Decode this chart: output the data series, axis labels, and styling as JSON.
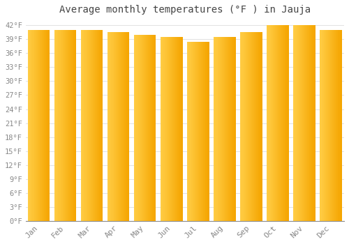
{
  "months": [
    "Jan",
    "Feb",
    "Mar",
    "Apr",
    "May",
    "Jun",
    "Jul",
    "Aug",
    "Sep",
    "Oct",
    "Nov",
    "Dec"
  ],
  "values": [
    41.0,
    41.0,
    41.0,
    40.5,
    40.0,
    39.5,
    38.5,
    39.5,
    40.5,
    42.0,
    42.0,
    41.0
  ],
  "bar_color_left": "#FFCC44",
  "bar_color_right": "#F5A500",
  "background_color": "#FFFFFF",
  "plot_bg_color": "#FFFFFF",
  "title": "Average monthly temperatures (°F ) in Jauja",
  "title_fontsize": 10,
  "ylabel_ticks": [
    0,
    3,
    6,
    9,
    12,
    15,
    18,
    21,
    24,
    27,
    30,
    33,
    36,
    39,
    42
  ],
  "ylim": [
    0,
    43.5
  ],
  "grid_color": "#DDDDDD",
  "tick_label_color": "#888888",
  "title_color": "#444444",
  "font_family": "monospace",
  "bar_width": 0.82
}
